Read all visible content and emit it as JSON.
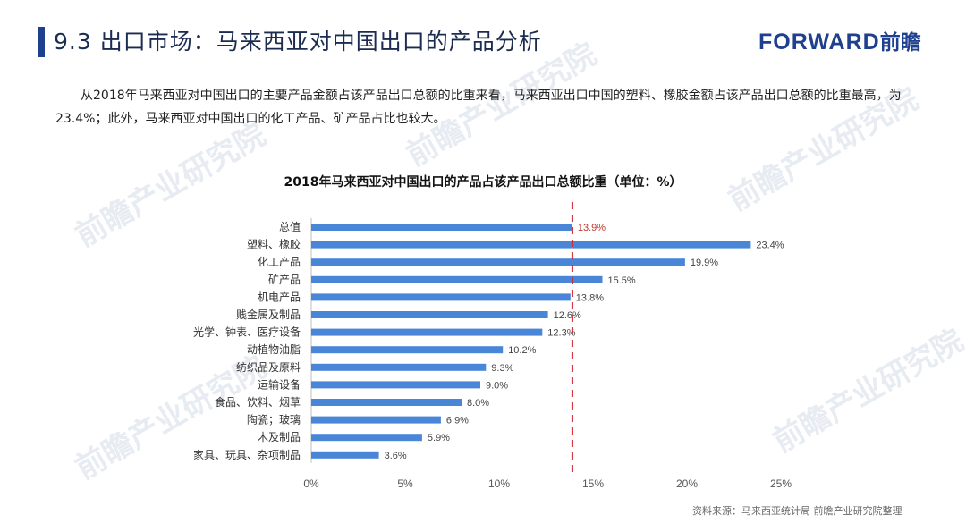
{
  "header": {
    "title": "9.3 出口市场：马来西亚对中国出口的产品分析",
    "logo_text": "FORWARD",
    "logo_cn": "前瞻",
    "accent_color": "#1f3f8f"
  },
  "description": "从2018年马来西亚对中国出口的主要产品金额占该产品出口总额的比重来看，马来西亚出口中国的塑料、橡胶金额占该产品出口总额的比重最高，为23.4%；此外，马来西亚对中国出口的化工产品、矿产品占比也较大。",
  "source": "资料来源：马来西亚统计局  前瞻产业研究院整理",
  "chart_data": {
    "type": "bar",
    "orientation": "horizontal",
    "title": "2018年马来西亚对中国出口的产品占该产品出口总额比重（单位：%）",
    "categories": [
      "总值",
      "塑料、橡胶",
      "化工产品",
      "矿产品",
      "机电产品",
      "贱金属及制品",
      "光学、钟表、医疗设备",
      "动植物油脂",
      "纺织品及原料",
      "运输设备",
      "食品、饮料、烟草",
      "陶瓷；玻璃",
      "木及制品",
      "家具、玩具、杂项制品"
    ],
    "values": [
      13.9,
      23.4,
      19.9,
      15.5,
      13.8,
      12.6,
      12.3,
      10.2,
      9.3,
      9.0,
      8.0,
      6.9,
      5.9,
      3.6
    ],
    "value_labels": [
      "13.9%",
      "23.4%",
      "19.9%",
      "15.5%",
      "13.8%",
      "12.6%",
      "12.3%",
      "10.2%",
      "9.3%",
      "9.0%",
      "8.0%",
      "6.9%",
      "5.9%",
      "3.6%"
    ],
    "x_ticks": [
      0,
      5,
      10,
      15,
      20,
      25
    ],
    "x_tick_labels": [
      "0%",
      "5%",
      "10%",
      "15%",
      "20%",
      "25%"
    ],
    "xlim": [
      0,
      25
    ],
    "reference_line": 13.9,
    "highlight_index": 0,
    "bar_color": "#4a86d8",
    "highlight_label_color": "#c0392b",
    "reference_line_color": "#d0262d"
  }
}
